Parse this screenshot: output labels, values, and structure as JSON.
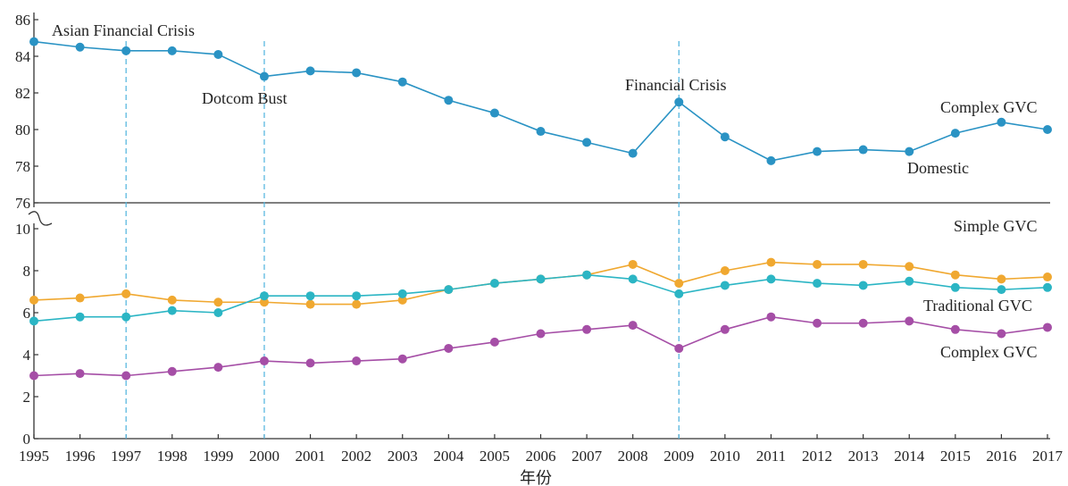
{
  "chart_data": {
    "type": "line",
    "x": [
      1995,
      1996,
      1997,
      1998,
      1999,
      2000,
      2001,
      2002,
      2003,
      2004,
      2005,
      2006,
      2007,
      2008,
      2009,
      2010,
      2011,
      2012,
      2013,
      2014,
      2015,
      2016,
      2017
    ],
    "xlabel": "年份",
    "top_panel": {
      "ylim": [
        76,
        86
      ],
      "yticks": [
        76,
        78,
        80,
        82,
        84,
        86
      ],
      "series": [
        {
          "name": "Domestic",
          "color": "#2a93c4",
          "values": [
            84.8,
            84.5,
            84.3,
            84.3,
            84.1,
            82.9,
            83.2,
            83.1,
            82.6,
            81.6,
            80.9,
            79.9,
            79.3,
            78.7,
            81.5,
            79.6,
            78.3,
            78.8,
            78.9,
            78.8,
            79.8,
            80.4,
            80.0
          ]
        }
      ]
    },
    "bottom_panel": {
      "ylim": [
        0,
        10
      ],
      "yticks": [
        0,
        2,
        4,
        6,
        8,
        10
      ],
      "series": [
        {
          "name": "Simple GVC",
          "color": "#f0a830",
          "values": [
            6.6,
            6.7,
            6.9,
            6.6,
            6.5,
            6.5,
            6.4,
            6.4,
            6.6,
            7.1,
            7.4,
            7.6,
            7.8,
            8.3,
            7.4,
            8.0,
            8.4,
            8.3,
            8.3,
            8.2,
            7.8,
            7.6,
            7.7
          ]
        },
        {
          "name": "Traditional GVC",
          "color": "#2bb5c4",
          "values": [
            5.6,
            5.8,
            5.8,
            6.1,
            6.0,
            6.8,
            6.8,
            6.8,
            6.9,
            7.1,
            7.4,
            7.6,
            7.8,
            7.6,
            6.9,
            7.3,
            7.6,
            7.4,
            7.3,
            7.5,
            7.2,
            7.1,
            7.2
          ]
        },
        {
          "name": "Complex GVC",
          "color": "#a54ea6",
          "values": [
            3.0,
            3.1,
            3.0,
            3.2,
            3.4,
            3.7,
            3.6,
            3.7,
            3.8,
            4.3,
            4.6,
            5.0,
            5.2,
            5.4,
            4.3,
            5.2,
            5.8,
            5.5,
            5.5,
            5.6,
            5.2,
            5.0,
            5.3
          ]
        }
      ]
    },
    "events": [
      {
        "year": 1997,
        "label": "Asian Financial Crisis"
      },
      {
        "year": 2000,
        "label": "Dotcom Bust"
      },
      {
        "year": 2009,
        "label": "Financial Crisis"
      }
    ],
    "series_labels": {
      "top_complex": "Complex GVC",
      "domestic": "Domestic",
      "simple": "Simple GVC",
      "traditional": "Traditional GVC",
      "bottom_complex": "Complex GVC"
    }
  }
}
